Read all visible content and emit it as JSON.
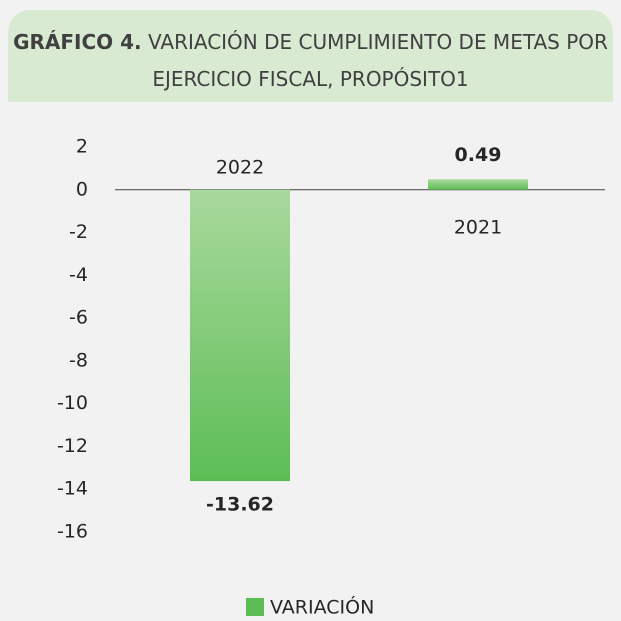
{
  "chart_data": {
    "type": "bar",
    "title_prefix": "GRÁFICO 4.",
    "title": "VARIACIÓN DE CUMPLIMIENTO DE METAS POR EJERCICIO FISCAL, PROPÓSITO1",
    "categories": [
      "2022",
      "2021"
    ],
    "series": [
      {
        "name": "VARIACIÓN",
        "color": "#5cbd55",
        "values": [
          -13.62,
          0.49
        ]
      }
    ],
    "ylim": [
      -16,
      2
    ],
    "yticks": [
      -16,
      -14,
      -12,
      -10,
      -8,
      -6,
      -4,
      -2,
      0,
      2
    ],
    "grid": false,
    "legend": "bottom"
  }
}
